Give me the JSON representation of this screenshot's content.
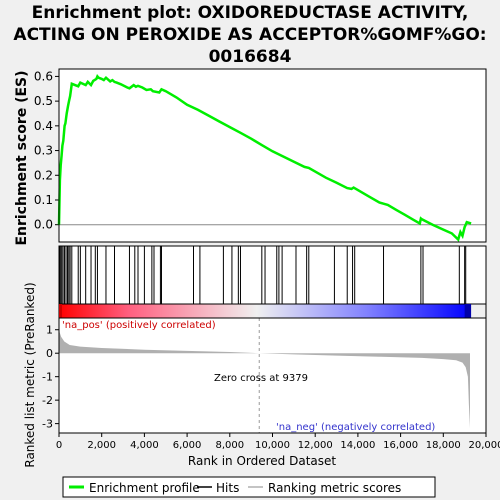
{
  "chart_data": {
    "type": "line",
    "title": [
      "Enrichment plot: OXIDOREDUCTASE ACTIVITY,",
      "ACTING ON PEROXIDE AS ACCEPTOR%GOMF%GO:",
      "0016684"
    ],
    "es_panel": {
      "ylabel": "Enrichment score (ES)",
      "yticks": [
        "0.0",
        "0.1",
        "0.2",
        "0.3",
        "0.4",
        "0.5",
        "0.6"
      ],
      "ylim": [
        -0.07,
        0.63
      ],
      "series": [
        {
          "name": "Enrichment profile",
          "color": "#00ee00",
          "x": [
            0,
            40,
            80,
            120,
            160,
            200,
            260,
            300,
            360,
            420,
            470,
            520,
            600,
            900,
            1000,
            1250,
            1350,
            1500,
            1600,
            1750,
            1800,
            1850,
            2000,
            2100,
            2200,
            2400,
            2500,
            2600,
            2700,
            2900,
            3200,
            3300,
            3500,
            3600,
            3700,
            3900,
            4100,
            4300,
            4400,
            4700,
            4800,
            5000,
            5500,
            6000,
            6500,
            7000,
            7500,
            8000,
            8500,
            9000,
            9500,
            10000,
            10500,
            11000,
            11500,
            11700,
            12000,
            12500,
            13000,
            13500,
            13700,
            13800,
            14000,
            14500,
            15000,
            15200,
            15400,
            15800,
            16200,
            16600,
            16900,
            16950,
            17000,
            17500,
            18000,
            18400,
            18700,
            18800,
            18900,
            19000,
            19100,
            19300
          ],
          "y": [
            0.0,
            0.18,
            0.24,
            0.28,
            0.32,
            0.34,
            0.4,
            0.41,
            0.45,
            0.48,
            0.5,
            0.52,
            0.57,
            0.56,
            0.575,
            0.565,
            0.578,
            0.565,
            0.582,
            0.59,
            0.6,
            0.595,
            0.59,
            0.585,
            0.595,
            0.58,
            0.585,
            0.578,
            0.575,
            0.568,
            0.555,
            0.552,
            0.565,
            0.558,
            0.562,
            0.555,
            0.545,
            0.548,
            0.54,
            0.535,
            0.548,
            0.54,
            0.515,
            0.485,
            0.465,
            0.442,
            0.418,
            0.395,
            0.372,
            0.348,
            0.322,
            0.297,
            0.276,
            0.255,
            0.234,
            0.23,
            0.215,
            0.19,
            0.17,
            0.148,
            0.145,
            0.15,
            0.14,
            0.115,
            0.09,
            0.085,
            0.08,
            0.06,
            0.04,
            0.02,
            0.005,
            0.025,
            0.022,
            0.0,
            -0.02,
            -0.035,
            -0.06,
            -0.03,
            -0.045,
            -0.01,
            0.01,
            0.005
          ]
        }
      ],
      "zero_line_color": "#888888"
    },
    "hits": {
      "name": "Hits",
      "color": "#000000",
      "x": [
        30,
        80,
        130,
        190,
        260,
        330,
        400,
        460,
        520,
        600,
        900,
        1000,
        1250,
        1500,
        1700,
        1800,
        2200,
        2600,
        3300,
        3550,
        3700,
        4000,
        4350,
        4450,
        4750,
        4800,
        6300,
        6600,
        7700,
        8100,
        8400,
        8500,
        9500,
        9650,
        10200,
        10300,
        10450,
        11100,
        11600,
        11700,
        12900,
        13500,
        13750,
        13850,
        15200,
        16950,
        17050,
        18750,
        19000,
        19050
      ]
    },
    "gradient_bar": {
      "pos_color": "#ff0000",
      "mid_color": "#f0f0f0",
      "neg_color": "#0000ff",
      "zero_cross": 9379
    },
    "metric_panel": {
      "ylabel": "Ranked list metric (PreRanked)",
      "xlabel": "Rank in Ordered Dataset",
      "yticks": [
        "-3",
        "-2",
        "-1",
        "0",
        "1"
      ],
      "ylim": [
        -3.4,
        1.5
      ],
      "xticks": [
        "0",
        "2,000",
        "4,000",
        "6,000",
        "8,000",
        "10,000",
        "12,000",
        "14,000",
        "16,000",
        "18,000",
        "20,000"
      ],
      "xlim": [
        0,
        20000
      ],
      "fill_color": "#b0b0b0",
      "curve": {
        "name": "Ranking metric scores",
        "x": [
          0,
          30,
          100,
          250,
          500,
          1000,
          2000,
          4000,
          6000,
          8000,
          9379,
          11000,
          13000,
          15000,
          17000,
          18000,
          18600,
          18900,
          19050,
          19150,
          19200,
          19250
        ],
        "y": [
          1.3,
          0.9,
          0.7,
          0.5,
          0.35,
          0.28,
          0.22,
          0.15,
          0.1,
          0.05,
          0.0,
          -0.05,
          -0.1,
          -0.15,
          -0.2,
          -0.25,
          -0.3,
          -0.4,
          -0.6,
          -1.0,
          -2.2,
          -3.2
        ]
      },
      "annotations": {
        "pos_label": "'na_pos' (positively correlated)",
        "pos_label_color": "#cc0000",
        "neg_label": "'na_neg' (negatively correlated)",
        "neg_label_color": "#3333cc",
        "zero_cross_label": "Zero cross at 9379",
        "zero_cross_rank": 9379
      }
    },
    "legend": {
      "placement": "bottom",
      "entries": [
        {
          "label": "Enrichment profile",
          "color": "#00ee00",
          "style": "thick-line"
        },
        {
          "label": "Hits",
          "color": "#000000",
          "style": "line"
        },
        {
          "label": "Ranking metric scores",
          "color": "#b0b0b0",
          "style": "line"
        }
      ]
    }
  }
}
